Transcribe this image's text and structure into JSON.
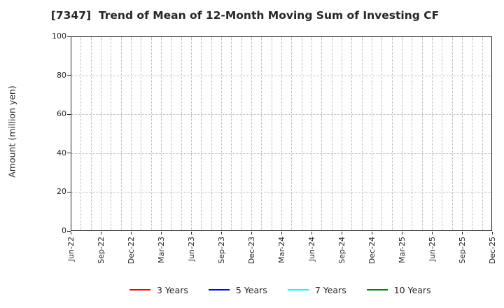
{
  "chart_data": {
    "type": "line",
    "title": "[7347]  Trend of Mean of 12-Month Moving Sum of Investing CF",
    "xlabel": "",
    "ylabel": "Amount (million yen)",
    "ylim": [
      0,
      100
    ],
    "y_ticks": [
      0,
      20,
      40,
      60,
      80,
      100
    ],
    "x_tick_labels": [
      "Jun-22",
      "Sep-22",
      "Dec-22",
      "Mar-23",
      "Jun-23",
      "Sep-23",
      "Dec-23",
      "Mar-24",
      "Jun-24",
      "Sep-24",
      "Dec-24",
      "Mar-25",
      "Jun-25",
      "Sep-25",
      "Dec-25"
    ],
    "months_per_x_tick": 3,
    "grid": true,
    "legend_position": "bottom",
    "series": [
      {
        "name": "3 Years",
        "color": "#ff0000",
        "values": []
      },
      {
        "name": "5 Years",
        "color": "#0000ff",
        "values": []
      },
      {
        "name": "7 Years",
        "color": "#00ffff",
        "values": []
      },
      {
        "name": "10 Years",
        "color": "#008000",
        "values": []
      }
    ]
  },
  "colors": {
    "text": "#262626",
    "grid": "#b3b3b3",
    "spine": "#262626",
    "background": "#ffffff"
  }
}
